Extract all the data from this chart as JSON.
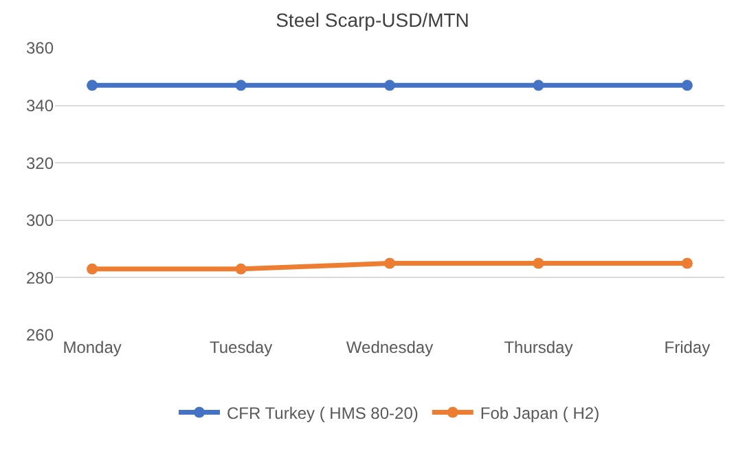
{
  "chart_data": {
    "type": "line",
    "title": "Steel Scarp-USD/MTN",
    "categories": [
      "Monday",
      "Tuesday",
      "Wednesday",
      "Thursday",
      "Friday"
    ],
    "series": [
      {
        "name": "CFR Turkey ( HMS 80-20)",
        "color": "#4472c4",
        "values": [
          347,
          347,
          347,
          347,
          347
        ]
      },
      {
        "name": "Fob Japan ( H2)",
        "color": "#ed7d31",
        "values": [
          283,
          283,
          285,
          285,
          285
        ]
      }
    ],
    "ylim": [
      260,
      360
    ],
    "yticks": [
      260,
      280,
      300,
      320,
      340,
      360
    ],
    "grid": "y",
    "legend": "bottom",
    "marker": "circle",
    "line_style": "solid"
  }
}
